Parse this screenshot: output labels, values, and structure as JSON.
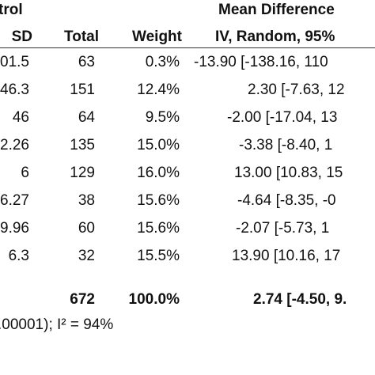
{
  "header": {
    "group_fragment": "trol",
    "effect_title": "Mean Difference",
    "col_sd": "SD",
    "col_total": "Total",
    "col_weight": "Weight",
    "col_ci": "IV, Random, 95%"
  },
  "rows": [
    {
      "sd": "01.5",
      "total": "63",
      "weight": "0.3%",
      "ci": "-13.90 [-138.16, 110"
    },
    {
      "sd": "46.3",
      "total": "151",
      "weight": "12.4%",
      "ci": "2.30 [-7.63, 12"
    },
    {
      "sd": "46",
      "total": "64",
      "weight": "9.5%",
      "ci": "-2.00 [-17.04, 13"
    },
    {
      "sd": "2.26",
      "total": "135",
      "weight": "15.0%",
      "ci": "-3.38 [-8.40, 1"
    },
    {
      "sd": "6",
      "total": "129",
      "weight": "16.0%",
      "ci": "13.00 [10.83, 15"
    },
    {
      "sd": "6.27",
      "total": "38",
      "weight": "15.6%",
      "ci": "-4.64 [-8.35, -0"
    },
    {
      "sd": "9.96",
      "total": "60",
      "weight": "15.6%",
      "ci": "-2.07 [-5.73, 1"
    },
    {
      "sd": "6.3",
      "total": "32",
      "weight": "15.5%",
      "ci": "13.90 [10.16, 17"
    }
  ],
  "total_row": {
    "total": "672",
    "weight": "100.0%",
    "ci": "2.74 [-4.50, 9."
  },
  "heterogeneity": ".00001); I² = 94%"
}
